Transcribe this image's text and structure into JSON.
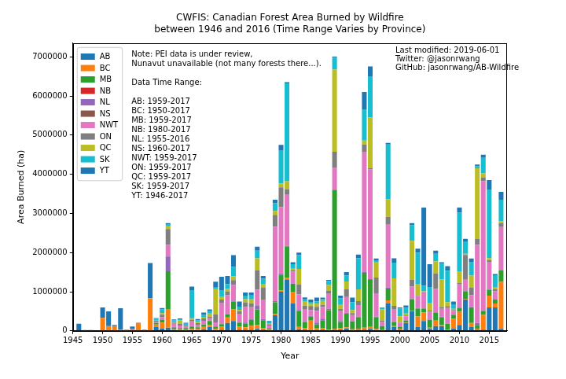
{
  "chart_data": {
    "type": "bar",
    "title": "CWFIS: Canadian Forest Area Burned by Wildfire\nbetween 1946 and 2016 (Time Range Varies by Province)",
    "x_label": "Year",
    "y_label": "Area Burned (ha)",
    "stacked": true,
    "grid": false,
    "legend": "upper left",
    "xlim": [
      1945,
      2018
    ],
    "xticks": [
      1945,
      1950,
      1955,
      1960,
      1965,
      1970,
      1975,
      1980,
      1985,
      1990,
      1995,
      2000,
      2005,
      2010,
      2015
    ],
    "ylim": [
      0,
      7350000
    ],
    "yticks": [
      0,
      1000000,
      2000000,
      3000000,
      4000000,
      5000000,
      6000000,
      7000000
    ],
    "annotations": [
      [
        "Note: PEI data is under review,",
        "Nunavut unavailable (not many forests there...)."
      ],
      [
        "Data Time Range:"
      ],
      [
        "AB: 1959-2017",
        "BC: 1950-2017",
        "MB: 1959-2017",
        "NB: 1980-2017",
        "NL: 1955-2016",
        "NS: 1960-2017",
        "NWT: 1959-2017",
        "ON: 1959-2017",
        "QC: 1959-2017",
        "SK: 1959-2017",
        "YT: 1946-2017"
      ],
      [
        "Last modified: 2019-06-01",
        "Twitter: @jasonrwang",
        "GitHub: jasonrwang/AB-Wildfire"
      ]
    ],
    "x": [
      1946,
      1947,
      1948,
      1949,
      1950,
      1951,
      1952,
      1953,
      1954,
      1955,
      1956,
      1957,
      1958,
      1959,
      1960,
      1961,
      1962,
      1963,
      1964,
      1965,
      1966,
      1967,
      1968,
      1969,
      1970,
      1971,
      1972,
      1973,
      1974,
      1975,
      1976,
      1977,
      1978,
      1979,
      1980,
      1981,
      1982,
      1983,
      1984,
      1985,
      1986,
      1987,
      1988,
      1989,
      1990,
      1991,
      1992,
      1993,
      1994,
      1995,
      1996,
      1997,
      1998,
      1999,
      2000,
      2001,
      2002,
      2003,
      2004,
      2005,
      2006,
      2007,
      2008,
      2009,
      2010,
      2011,
      2012,
      2013,
      2014,
      2015,
      2016,
      2017
    ],
    "series": [
      {
        "name": "AB",
        "color": "#1f77b4",
        "values": [
          null,
          null,
          null,
          null,
          null,
          null,
          null,
          null,
          null,
          null,
          null,
          null,
          null,
          100000,
          60000,
          80000,
          20000,
          10000,
          10000,
          20000,
          20000,
          40000,
          100000,
          20000,
          30000,
          200000,
          250000,
          30000,
          30000,
          30000,
          50000,
          30000,
          10000,
          400000,
          1000000,
          1300000,
          700000,
          40000,
          30000,
          20000,
          20000,
          30000,
          10000,
          30000,
          30000,
          60000,
          10000,
          30000,
          30000,
          50000,
          20000,
          10000,
          700000,
          100000,
          30000,
          200000,
          500000,
          100000,
          250000,
          50000,
          120000,
          120000,
          20000,
          60000,
          150000,
          800000,
          100000,
          30000,
          30000,
          600000,
          600000,
          50000
        ]
      },
      {
        "name": "BC",
        "color": "#ff7f0e",
        "values": [
          null,
          null,
          null,
          null,
          330000,
          120000,
          120000,
          30000,
          20000,
          40000,
          200000,
          20000,
          830000,
          60000,
          150000,
          480000,
          20000,
          30000,
          20000,
          30000,
          30000,
          60000,
          50000,
          30000,
          80000,
          140000,
          300000,
          80000,
          60000,
          100000,
          100000,
          40000,
          30000,
          30000,
          30000,
          50000,
          300000,
          60000,
          40000,
          240000,
          40000,
          40000,
          20000,
          20000,
          40000,
          30000,
          30000,
          20000,
          50000,
          50000,
          30000,
          10000,
          80000,
          20000,
          20000,
          10000,
          10000,
          270000,
          220000,
          30000,
          140000,
          30000,
          10000,
          250000,
          340000,
          10000,
          100000,
          20000,
          380000,
          300000,
          100000,
          1200000
        ]
      },
      {
        "name": "MB",
        "color": "#2ca02c",
        "values": [
          null,
          null,
          null,
          null,
          null,
          null,
          null,
          null,
          null,
          null,
          null,
          null,
          null,
          40000,
          70000,
          960000,
          40000,
          30000,
          40000,
          60000,
          40000,
          60000,
          100000,
          60000,
          60000,
          80000,
          200000,
          100000,
          100000,
          150000,
          400000,
          200000,
          30000,
          300000,
          400000,
          800000,
          200000,
          400000,
          150000,
          100000,
          100000,
          200000,
          500000,
          3550000,
          150000,
          350000,
          200000,
          300000,
          1400000,
          1200000,
          300000,
          100000,
          300000,
          100000,
          50000,
          50000,
          300000,
          200000,
          100000,
          200000,
          200000,
          200000,
          150000,
          100000,
          100000,
          200000,
          400000,
          100000,
          100000,
          150000,
          100000,
          300000
        ]
      },
      {
        "name": "NB",
        "color": "#d62728",
        "values": [
          null,
          null,
          null,
          null,
          null,
          null,
          null,
          null,
          null,
          null,
          null,
          null,
          null,
          null,
          null,
          null,
          null,
          null,
          null,
          null,
          null,
          null,
          null,
          null,
          null,
          null,
          null,
          null,
          null,
          null,
          null,
          null,
          null,
          null,
          5000,
          2000,
          2000,
          1000,
          1500,
          800,
          600,
          1200,
          900,
          2000,
          700,
          900,
          1100,
          600,
          800,
          500,
          400,
          300,
          700,
          600,
          400,
          500,
          300,
          600,
          400,
          300,
          500,
          400,
          300,
          200,
          400,
          300,
          500,
          200,
          300,
          400,
          300,
          500
        ]
      },
      {
        "name": "NL",
        "color": "#9467bd",
        "values": [
          null,
          null,
          null,
          null,
          null,
          null,
          null,
          null,
          null,
          10000,
          5000,
          5000,
          5000,
          5000,
          10000,
          380000,
          20000,
          5000,
          5000,
          10000,
          5000,
          5000,
          10000,
          5000,
          10000,
          10000,
          20000,
          10000,
          20000,
          20000,
          100000,
          30000,
          5000,
          30000,
          30000,
          20000,
          10000,
          30000,
          20000,
          20000,
          50000,
          40000,
          30000,
          10000,
          30000,
          20000,
          10000,
          10000,
          30000,
          20000,
          10000,
          5000,
          30000,
          20000,
          10000,
          10000,
          20000,
          20000,
          10000,
          10000,
          10000,
          10000,
          5000,
          5000,
          10000,
          10000,
          10000,
          50000,
          10000,
          10000,
          10000,
          null
        ]
      },
      {
        "name": "NS",
        "color": "#8c564b",
        "values": [
          null,
          null,
          null,
          null,
          null,
          null,
          null,
          null,
          null,
          null,
          null,
          null,
          null,
          null,
          3000,
          2000,
          1500,
          1000,
          800,
          1200,
          900,
          1500,
          700,
          600,
          1000,
          800,
          5000,
          700,
          900,
          5000,
          1200,
          800,
          600,
          1500,
          1000,
          800,
          700,
          600,
          900,
          500,
          1100,
          600,
          700,
          800,
          600,
          1200,
          500,
          400,
          700,
          600,
          500,
          300,
          400,
          500,
          300,
          400,
          500,
          300,
          600,
          200,
          300,
          400,
          300,
          200,
          300,
          400,
          200,
          300,
          500,
          300,
          2000,
          300
        ]
      },
      {
        "name": "NWT",
        "color": "#e377c2",
        "values": [
          null,
          null,
          null,
          null,
          null,
          null,
          null,
          null,
          null,
          null,
          null,
          null,
          null,
          30000,
          60000,
          300000,
          80000,
          60000,
          30000,
          120000,
          60000,
          90000,
          60000,
          100000,
          540000,
          480000,
          400000,
          200000,
          400000,
          300000,
          400000,
          500000,
          60000,
          1900000,
          1700000,
          1300000,
          300000,
          400000,
          300000,
          150000,
          300000,
          300000,
          400000,
          560000,
          250000,
          400000,
          150000,
          300000,
          3050000,
          2800000,
          600000,
          100000,
          1600000,
          300000,
          100000,
          100000,
          300000,
          300000,
          400000,
          200000,
          600000,
          200000,
          400000,
          100000,
          600000,
          300000,
          300000,
          2000000,
          3300000,
          700000,
          200000,
          1100000
        ]
      },
      {
        "name": "ON",
        "color": "#7f7f7f",
        "values": [
          null,
          null,
          null,
          null,
          null,
          null,
          null,
          null,
          null,
          null,
          null,
          null,
          null,
          20000,
          60000,
          400000,
          30000,
          40000,
          30000,
          40000,
          40000,
          60000,
          40000,
          200000,
          80000,
          100000,
          120000,
          80000,
          120000,
          100000,
          500000,
          300000,
          30000,
          300000,
          500000,
          150000,
          40000,
          250000,
          100000,
          100000,
          100000,
          50000,
          60000,
          400000,
          60000,
          200000,
          50000,
          100000,
          200000,
          30000,
          400000,
          30000,
          200000,
          100000,
          10000,
          20000,
          170000,
          10000,
          10000,
          30000,
          400000,
          50000,
          50000,
          20000,
          20000,
          620000,
          200000,
          150000,
          100000,
          50000,
          50000,
          100000
        ]
      },
      {
        "name": "QC",
        "color": "#bcbd22",
        "values": [
          null,
          null,
          null,
          null,
          null,
          null,
          null,
          null,
          null,
          null,
          null,
          null,
          null,
          20000,
          40000,
          70000,
          20000,
          90000,
          20000,
          40000,
          30000,
          40000,
          80000,
          650000,
          80000,
          60000,
          100000,
          40000,
          80000,
          100000,
          300000,
          100000,
          30000,
          100000,
          100000,
          200000,
          50000,
          400000,
          100000,
          60000,
          80000,
          100000,
          150000,
          2100000,
          100000,
          200000,
          80000,
          300000,
          100000,
          1300000,
          400000,
          300000,
          450000,
          700000,
          150000,
          50000,
          1000000,
          300000,
          20000,
          200000,
          300000,
          700000,
          100000,
          30000,
          300000,
          30000,
          300000,
          1800000,
          100000,
          50000,
          60000,
          50000
        ]
      },
      {
        "name": "SK",
        "color": "#17becf",
        "values": [
          null,
          null,
          null,
          null,
          null,
          null,
          null,
          null,
          null,
          null,
          null,
          null,
          null,
          30000,
          100000,
          40000,
          40000,
          30000,
          40000,
          720000,
          40000,
          50000,
          60000,
          40000,
          160000,
          120000,
          240000,
          80000,
          90000,
          100000,
          200000,
          130000,
          40000,
          200000,
          850000,
          2500000,
          100000,
          350000,
          60000,
          50000,
          60000,
          50000,
          100000,
          300000,
          170000,
          150000,
          200000,
          800000,
          800000,
          1050000,
          40000,
          30000,
          1400000,
          400000,
          200000,
          150000,
          400000,
          800000,
          140000,
          400000,
          200000,
          400000,
          800000,
          100000,
          1500000,
          300000,
          350000,
          60000,
          400000,
          1750000,
          300000,
          550000
        ]
      },
      {
        "name": "YT",
        "color": "#1f77b4",
        "values": [
          180000,
          20000,
          20000,
          10000,
          270000,
          380000,
          30000,
          550000,
          10000,
          60000,
          5000,
          10000,
          900000,
          20000,
          30000,
          40000,
          20000,
          20000,
          10000,
          90000,
          35000,
          60000,
          50000,
          150000,
          340000,
          210000,
          300000,
          130000,
          80000,
          75000,
          100000,
          70000,
          15000,
          90000,
          135000,
          30000,
          50000,
          70000,
          50000,
          60000,
          100000,
          40000,
          30000,
          30000,
          70000,
          90000,
          120000,
          90000,
          440000,
          250000,
          50000,
          15000,
          40000,
          110000,
          30000,
          60000,
          50000,
          100000,
          2000000,
          580000,
          80000,
          40000,
          115000,
          85000,
          130000,
          80000,
          90000,
          40000,
          80000,
          240000,
          30000,
          200000
        ]
      }
    ]
  }
}
